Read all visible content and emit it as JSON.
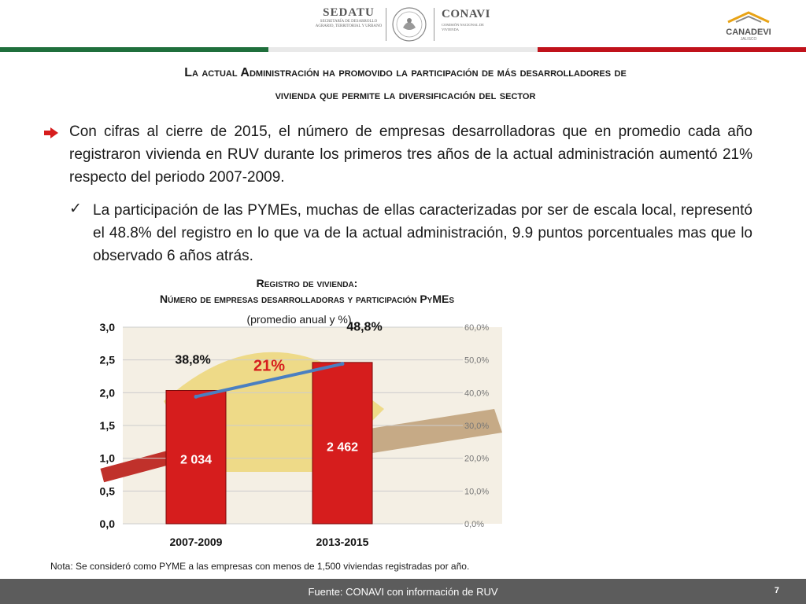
{
  "header": {
    "sedatu_name": "SEDATU",
    "sedatu_sub": "Secretaría de Desarrollo Agrario, Territorial y Urbano",
    "conavi_name": "CONAVI",
    "conavi_sub": "Comisión Nacional de Vivienda",
    "canadevi_name": "CANADEVI",
    "canadevi_sub": "JALISCO"
  },
  "title": {
    "line1": "La actual Administración ha promovido la participación de más desarrolladores de",
    "line2": "vivienda que permite la diversificación del sector"
  },
  "bullets": {
    "main": "Con cifras al cierre de 2015, el número de empresas desarrolladoras que en promedio cada año registraron vivienda en RUV durante los primeros tres años de la actual administración aumentó 21% respecto del periodo 2007-2009.",
    "sub": "La participación de las PYMEs, muchas de ellas caracterizadas por ser de escala local, representó el 48.8% del registro en lo que va de la actual administración, 9.9 puntos porcentuales mas que lo observado 6 años atrás."
  },
  "icons": {
    "arrow": "arrow-right-icon",
    "check": "checkmark-icon"
  },
  "chart_data": {
    "type": "bar",
    "title": "Registro de vivienda:",
    "subtitle": "Número de empresas desarrolladoras y participación PyMEs",
    "unit_note": "(promedio anual y %)",
    "categories": [
      "2007-2009",
      "2013-2015"
    ],
    "series": [
      {
        "values": [
          2034,
          2462
        ],
        "value_labels": [
          "2 034",
          "2 462"
        ],
        "color": "#d61d1d",
        "axis": "left"
      },
      {
        "values": [
          38.8,
          48.8
        ],
        "value_labels": [
          "38,8%",
          "48,8%"
        ],
        "type": "line",
        "color": "#4a7fc1",
        "axis": "right"
      }
    ],
    "left_axis": {
      "ticks": [
        "0,0",
        "0,5",
        "1,0",
        "1,5",
        "2,0",
        "2,5",
        "3,0"
      ],
      "range": [
        0,
        3000
      ]
    },
    "right_axis": {
      "ticks": [
        "0,0%",
        "10,0%",
        "20,0%",
        "30,0%",
        "40,0%",
        "50,0%",
        "60,0%"
      ],
      "range": [
        0,
        60
      ]
    },
    "growth_label": "21%",
    "colors": {
      "bar": "#d61d1d",
      "line": "#4a7fc1",
      "growth": "#d61d1d",
      "grid": "#cccccc"
    }
  },
  "note": "Nota: Se consideró como PYME a las empresas con menos de 1,500 viviendas registradas por año.",
  "footer": {
    "source": "Fuente: CONAVI con información de RUV",
    "page": "7"
  }
}
